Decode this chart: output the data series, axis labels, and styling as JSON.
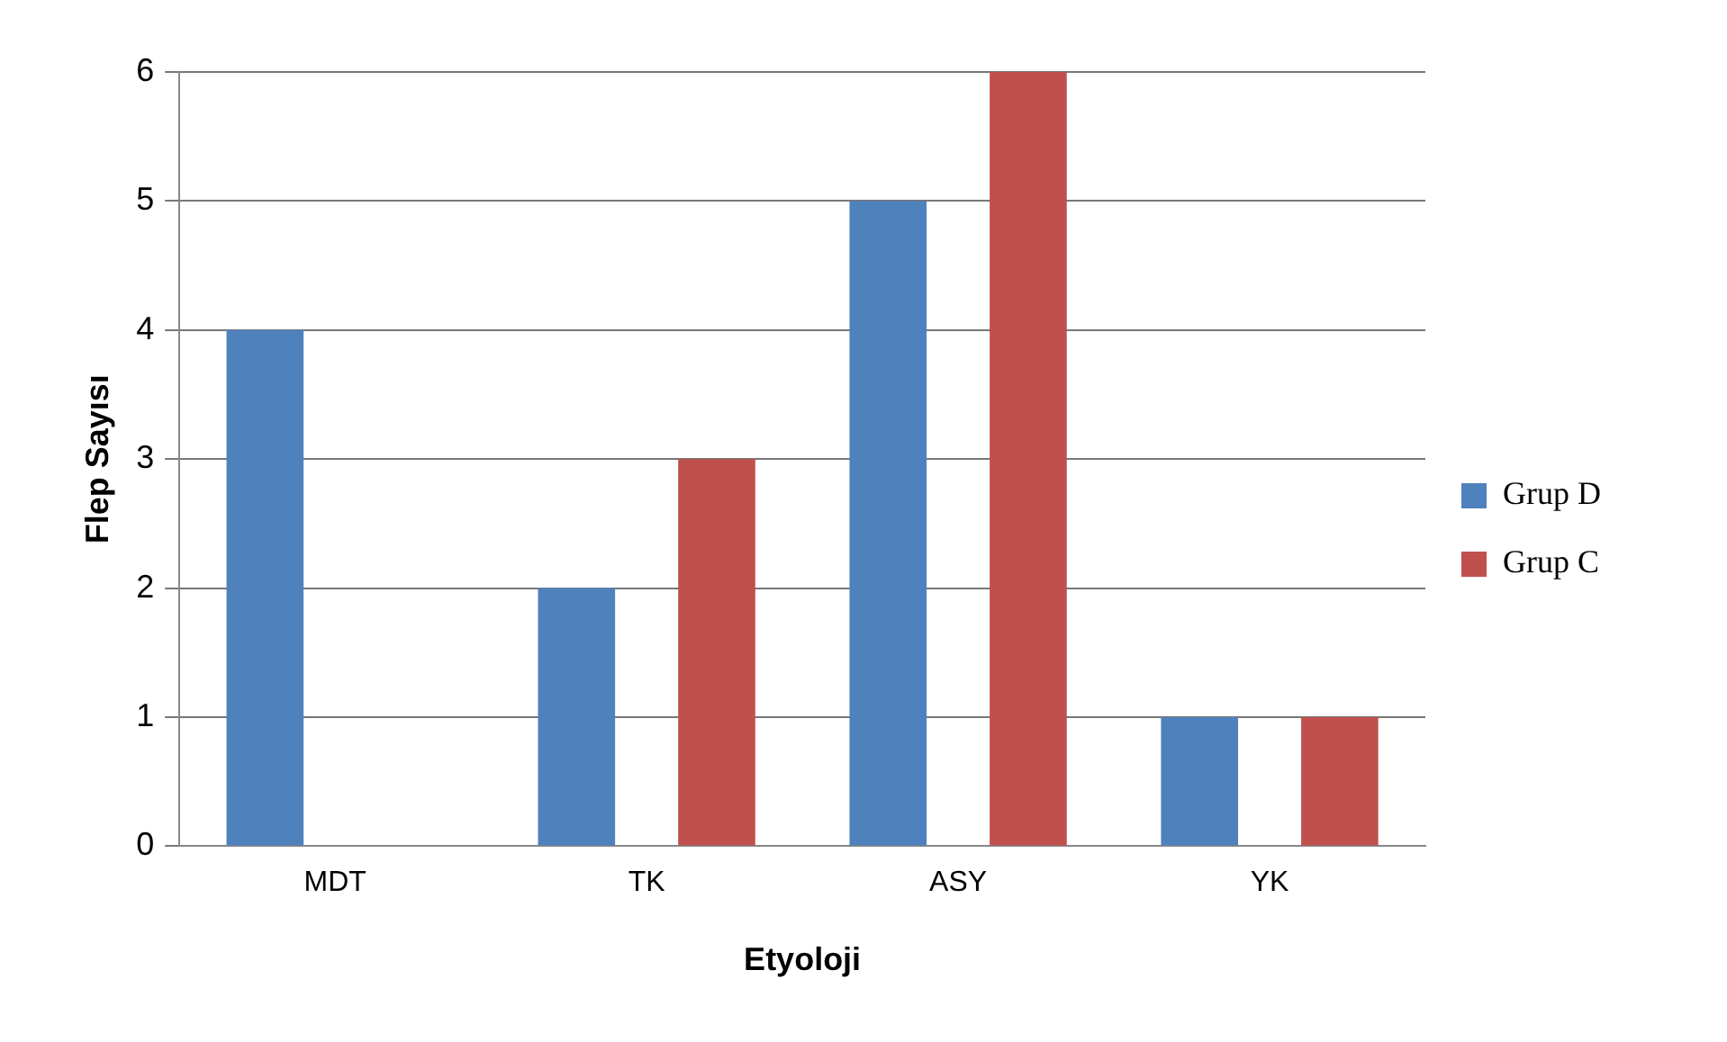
{
  "chart_data": {
    "type": "bar",
    "xlabel": "Etyoloji",
    "ylabel": "Flep Sayısı",
    "categories": [
      "MDT",
      "TK",
      "ASY",
      "YK"
    ],
    "series": [
      {
        "name": "Grup D",
        "color": "#4f81bd",
        "values": [
          4,
          2,
          5,
          1
        ]
      },
      {
        "name": "Grup C",
        "color": "#c0504d",
        "values": [
          0,
          3,
          6,
          1
        ]
      }
    ],
    "ylim": [
      0,
      6
    ],
    "yticks": [
      0,
      1,
      2,
      3,
      4,
      5,
      6
    ],
    "grid": "y",
    "legend": "right"
  }
}
